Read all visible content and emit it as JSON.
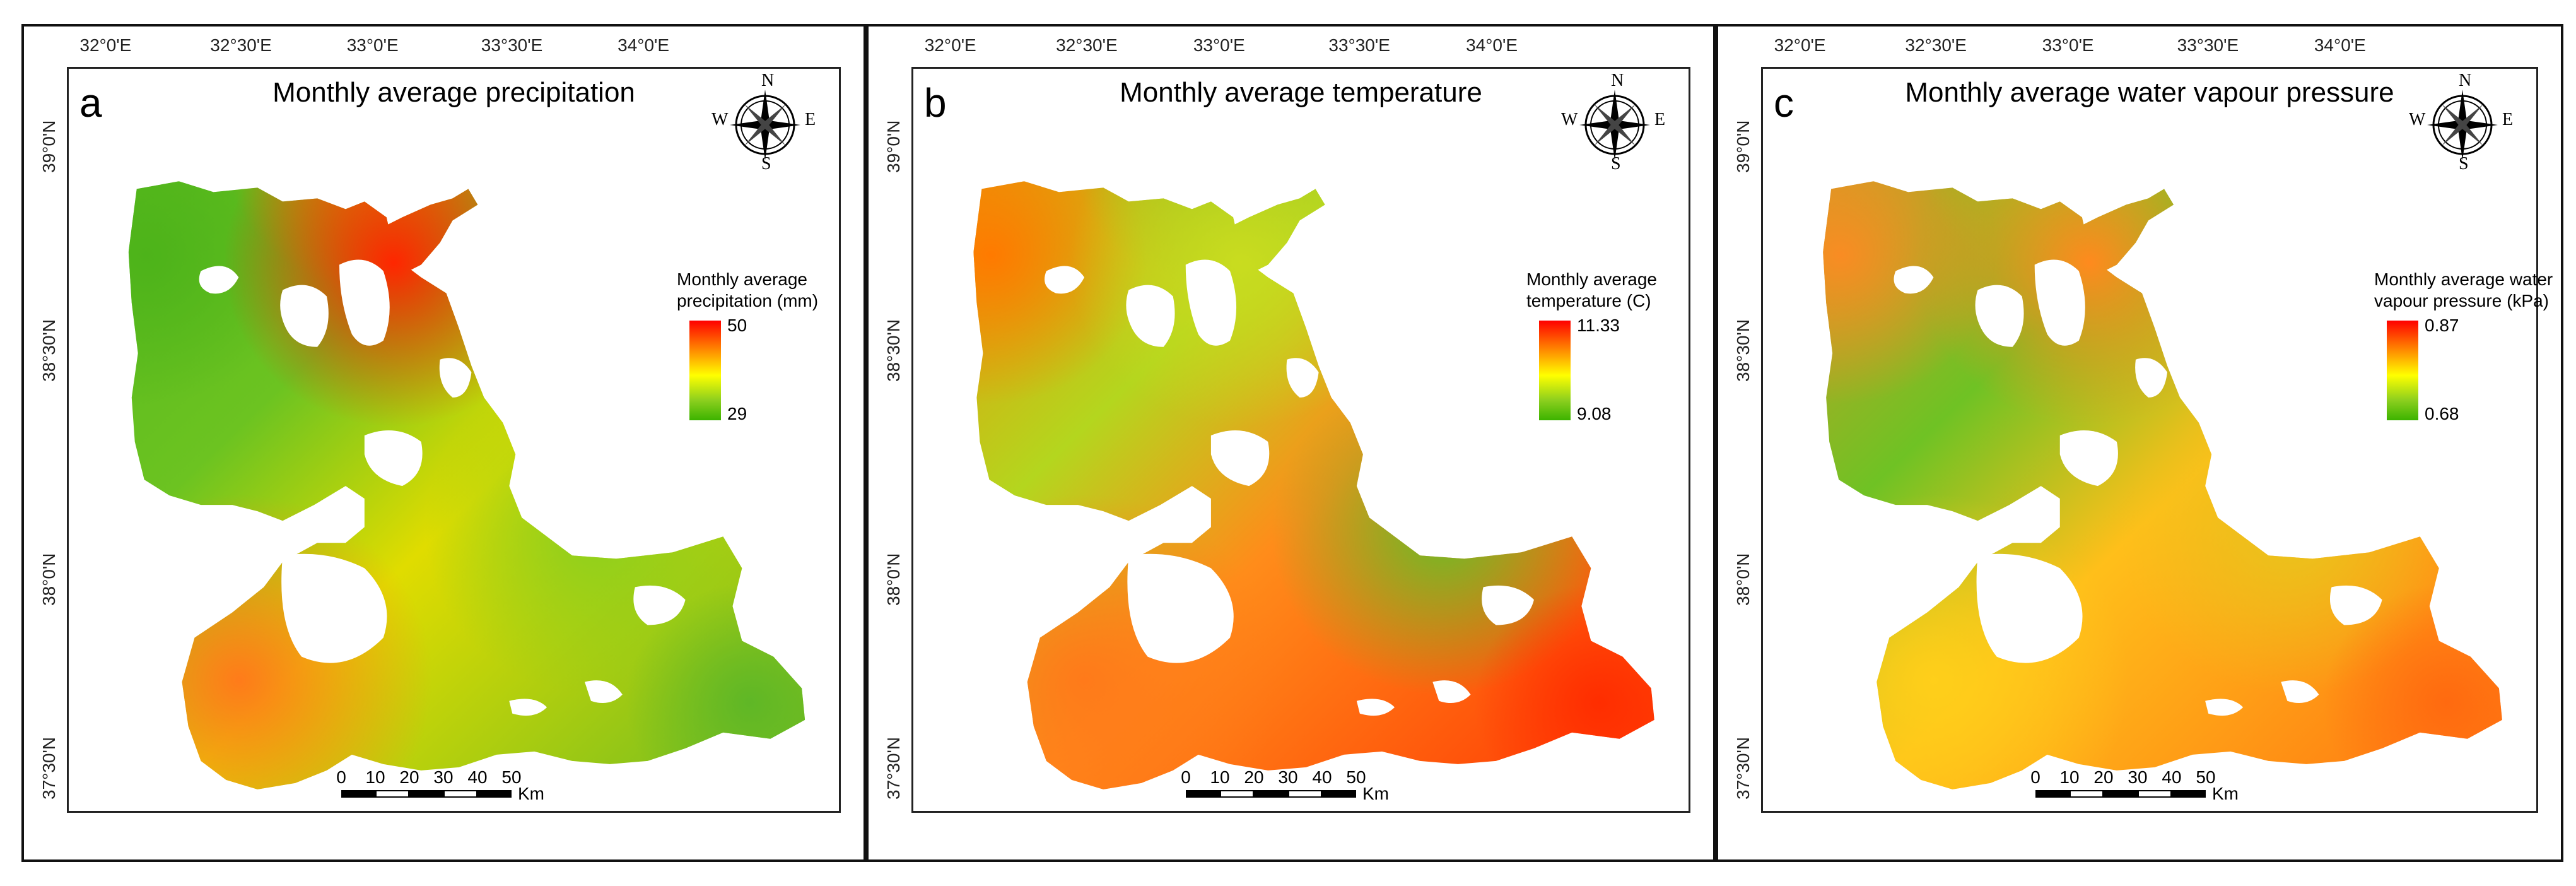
{
  "panels": [
    {
      "letter": "a",
      "title": "Monthly average precipitation",
      "legend": {
        "title": "Monthly average\nprecipitation (mm)",
        "max": "50",
        "min": "29"
      },
      "colors": {
        "west": "#4db31a",
        "centerWest": "#6cc321",
        "centerHot": "#ff2600",
        "north": "#ff7e00",
        "south": "#e0dc00",
        "southwest": "#ff7b1a",
        "east": "#8ccf1e",
        "southeast": "#5fb726"
      }
    },
    {
      "letter": "b",
      "title": "Monthly average temperature",
      "legend": {
        "title": "Monthly average\ntemperature (C)",
        "max": "11.33",
        "min": "9.08"
      },
      "colors": {
        "west": "#ff7a00",
        "centerWest": "#b4d61e",
        "centerHot": "#c9dc1f",
        "north": "#8cc624",
        "south": "#ff8c1a",
        "southwest": "#ff7a1a",
        "east": "#6dbb26",
        "southeast": "#ff2d00"
      }
    },
    {
      "letter": "c",
      "title": "Monthly average water vapour pressure",
      "legend": {
        "title": "Monthly average water\nvapour pressure (kPa)",
        "max": "0.87",
        "min": "0.68"
      },
      "colors": {
        "west": "#f98c23",
        "centerWest": "#6fc224",
        "centerHot": "#ff8a1e",
        "north": "#8ccc20",
        "south": "#ffbf1a",
        "southwest": "#ffcf1a",
        "east": "#e9c41c",
        "southeast": "#ff6a10"
      }
    }
  ],
  "axes": {
    "lon_ticks": [
      "32°0'E",
      "32°30'E",
      "33°0'E",
      "33°30'E",
      "34°0'E"
    ],
    "lat_ticks": [
      "39°0'N",
      "38°30'N",
      "38°0'N",
      "37°30'N"
    ]
  },
  "compass": {
    "n": "N",
    "e": "E",
    "s": "S",
    "w": "W"
  },
  "scale": {
    "ticks": [
      "0",
      "10",
      "20",
      "30",
      "40",
      "50"
    ],
    "unit": "Km"
  }
}
